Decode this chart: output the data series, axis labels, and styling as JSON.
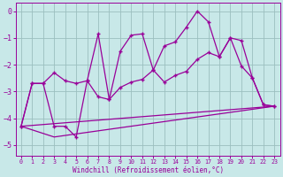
{
  "xlabel": "Windchill (Refroidissement éolien,°C)",
  "xlim": [
    -0.5,
    23.5
  ],
  "ylim": [
    -5.4,
    0.3
  ],
  "yticks": [
    0,
    -1,
    -2,
    -3,
    -4,
    -5
  ],
  "xticks": [
    0,
    1,
    2,
    3,
    4,
    5,
    6,
    7,
    8,
    9,
    10,
    11,
    12,
    13,
    14,
    15,
    16,
    17,
    18,
    19,
    20,
    21,
    22,
    23
  ],
  "bg_color": "#c8e8e8",
  "grid_color": "#9bbfbf",
  "line_color": "#990099",
  "line1_x": [
    0,
    1,
    2,
    3,
    4,
    5,
    6,
    7,
    8,
    9,
    10,
    11,
    12,
    13,
    14,
    15,
    16,
    17,
    18,
    19,
    20,
    21,
    22,
    23
  ],
  "line1_y": [
    -4.3,
    -2.7,
    -2.7,
    -2.3,
    -2.6,
    -2.7,
    -2.6,
    -0.85,
    -3.3,
    -1.5,
    -0.9,
    -0.85,
    -2.2,
    -1.3,
    -1.15,
    -0.6,
    0.0,
    -0.4,
    -1.7,
    -1.0,
    -2.05,
    -2.5,
    -3.5,
    -3.55
  ],
  "line2_x": [
    0,
    1,
    2,
    3,
    4,
    5,
    6,
    7,
    8,
    9,
    10,
    11,
    12,
    13,
    14,
    15,
    16,
    17,
    18,
    19,
    20,
    21,
    22,
    23
  ],
  "line2_y": [
    -4.3,
    -2.7,
    -2.7,
    -4.3,
    -4.3,
    -4.7,
    -2.6,
    -3.2,
    -3.3,
    -2.85,
    -2.65,
    -2.55,
    -2.2,
    -2.65,
    -2.4,
    -2.25,
    -1.8,
    -1.55,
    -1.7,
    -1.0,
    -1.1,
    -2.5,
    -3.5,
    -3.55
  ],
  "line3_x": [
    0,
    23
  ],
  "line3_y": [
    -4.3,
    -3.55
  ],
  "line4_x": [
    0,
    3,
    23
  ],
  "line4_y": [
    -4.3,
    -4.7,
    -3.55
  ]
}
